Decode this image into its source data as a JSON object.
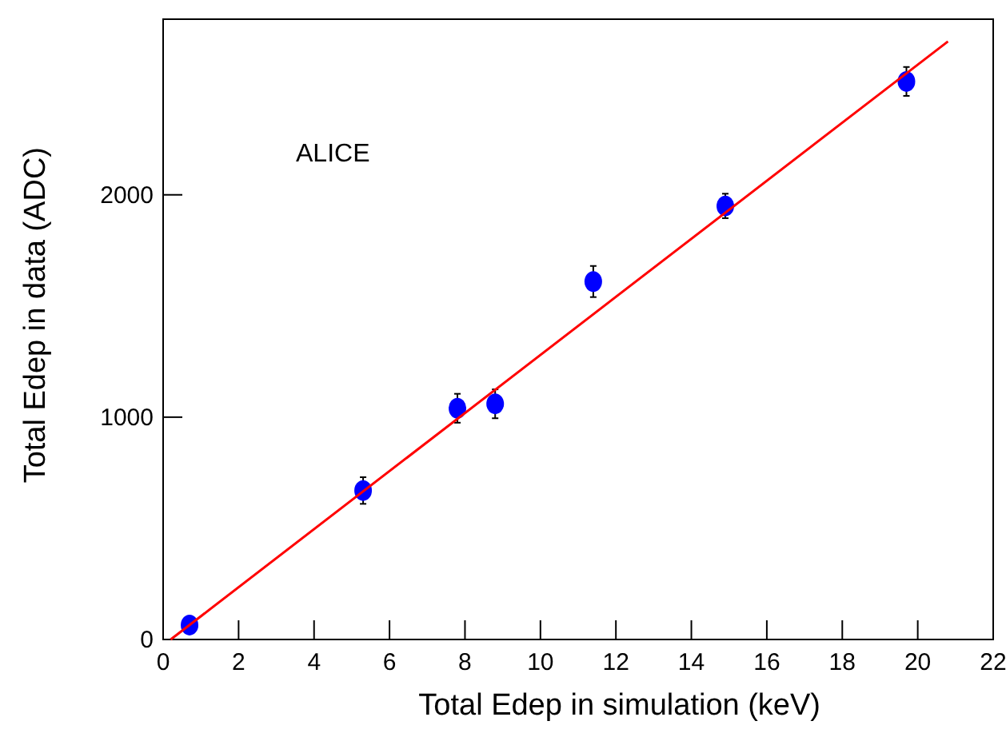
{
  "chart_data": {
    "type": "scatter",
    "xlabel": "Total Edep in simulation (keV)",
    "ylabel": "Total Edep in data (ADC)",
    "annotations": [
      "ALICE"
    ],
    "xlim": [
      0,
      22
    ],
    "xticks": [
      0,
      2,
      4,
      6,
      8,
      10,
      12,
      14,
      16,
      18,
      20,
      22
    ],
    "ylim": [
      0,
      2790
    ],
    "yticks": [
      0,
      1000,
      2000
    ],
    "grid": false,
    "series": [
      {
        "color": "#0000ff",
        "marker": "circle",
        "x": [
          0.7,
          5.3,
          7.8,
          8.8,
          11.4,
          14.9,
          19.7
        ],
        "values": [
          65,
          670,
          1040,
          1060,
          1610,
          1950,
          2510
        ],
        "errors": [
          null,
          60,
          65,
          65,
          70,
          55,
          65
        ]
      },
      {
        "type": "line",
        "color": "#ff0000",
        "line_style": "solid",
        "x": [
          0.2,
          20.8
        ],
        "values": [
          0,
          2690
        ]
      }
    ]
  }
}
